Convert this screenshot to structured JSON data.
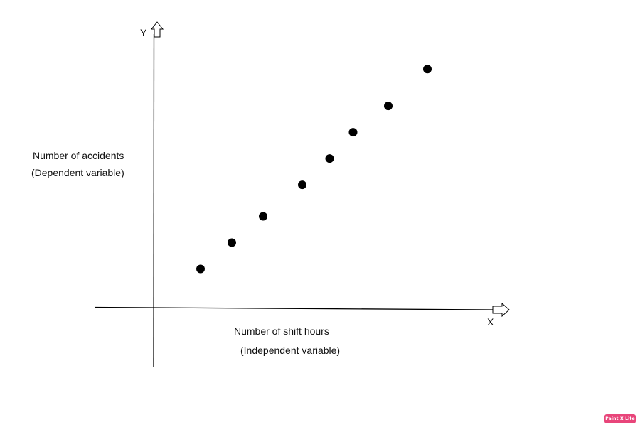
{
  "chart_data": {
    "type": "scatter",
    "title": "",
    "x_axis_letter": "X",
    "y_axis_letter": "Y",
    "xlabel_lines": [
      "Number of shift hours",
      "(Independent variable)"
    ],
    "ylabel_lines": [
      "Number of accidents",
      "(Dependent variable)"
    ],
    "xlim": [
      0,
      10
    ],
    "ylim": [
      0,
      10
    ],
    "grid": false,
    "points": [
      {
        "x": 1.2,
        "y": 1.5
      },
      {
        "x": 2.0,
        "y": 2.5
      },
      {
        "x": 2.8,
        "y": 3.5
      },
      {
        "x": 3.8,
        "y": 4.7
      },
      {
        "x": 4.5,
        "y": 5.7
      },
      {
        "x": 5.1,
        "y": 6.7
      },
      {
        "x": 6.0,
        "y": 7.7
      },
      {
        "x": 7.0,
        "y": 9.1
      }
    ],
    "marker_color": "#000000"
  },
  "watermark": "Paint X Lite"
}
